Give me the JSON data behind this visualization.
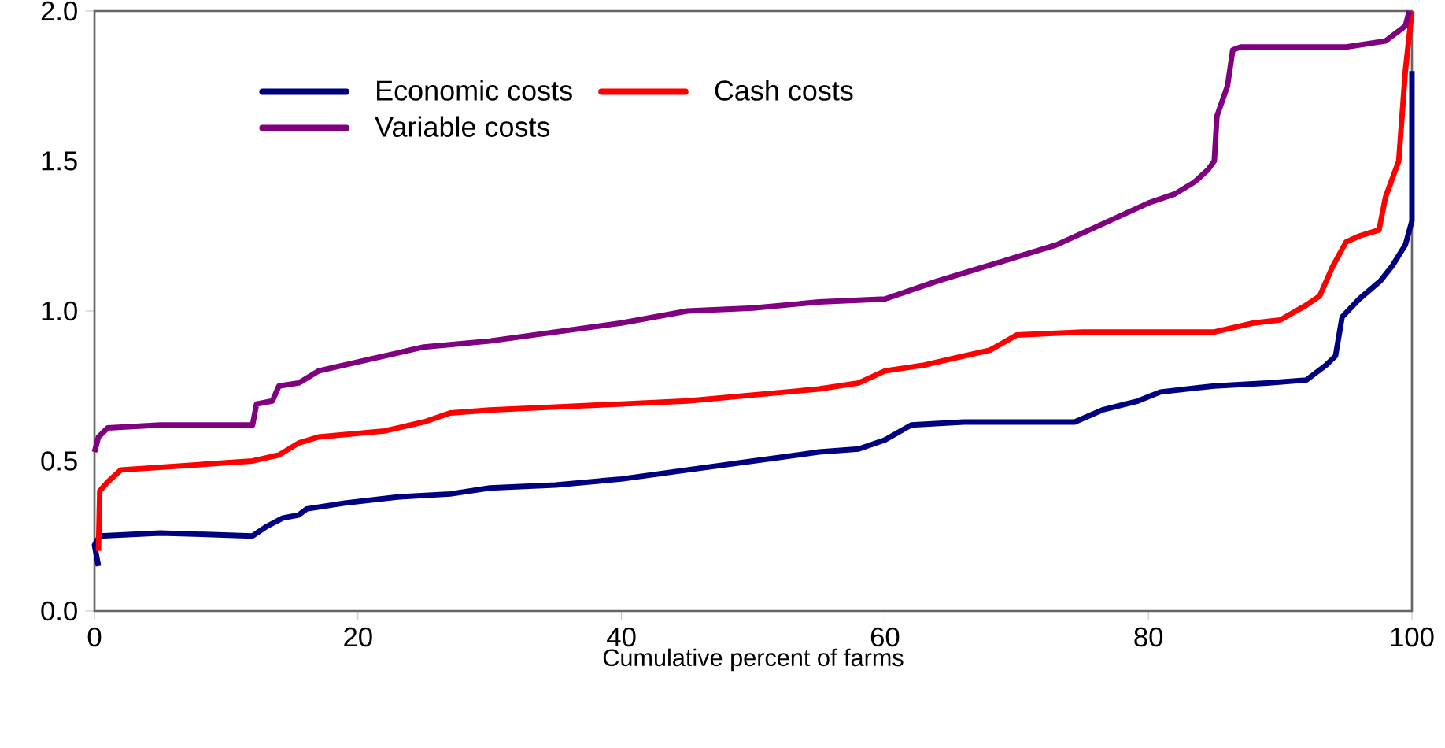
{
  "chart_data": {
    "type": "line",
    "xlabel": "Cumulative percent of farms",
    "xlim": [
      0,
      100
    ],
    "xticks": [
      0,
      20,
      40,
      60,
      80,
      100
    ],
    "ylim": [
      0,
      2.0
    ],
    "yticks": [
      {
        "value": 0,
        "label": "0.0"
      },
      {
        "value": 0.5,
        "label": "0.5"
      },
      {
        "value": 1.0,
        "label": "1.0"
      },
      {
        "value": 1.5,
        "label": "1.5"
      },
      {
        "value": 2.0,
        "label": "2.0"
      }
    ],
    "grid": false,
    "legend": "top left",
    "marker": "none",
    "line_style": "solid",
    "series": [
      {
        "name": "Economic costs",
        "color": "#000080",
        "x": [
          0.3,
          0,
          0.4,
          5,
          12,
          13,
          14.3,
          15.5,
          16.1,
          19,
          23,
          27,
          30,
          35,
          40,
          45,
          50,
          55,
          58,
          60,
          62,
          66,
          70,
          74.4,
          76.5,
          79.2,
          80.9,
          85,
          89,
          92,
          93.5,
          94.2,
          94.7,
          96,
          97.6,
          98.5,
          99.5,
          100,
          100
        ],
        "values": [
          0.15,
          0.22,
          0.25,
          0.26,
          0.25,
          0.28,
          0.31,
          0.32,
          0.34,
          0.36,
          0.38,
          0.39,
          0.41,
          0.42,
          0.44,
          0.47,
          0.5,
          0.53,
          0.54,
          0.57,
          0.62,
          0.63,
          0.63,
          0.63,
          0.67,
          0.7,
          0.73,
          0.75,
          0.76,
          0.77,
          0.82,
          0.85,
          0.98,
          1.04,
          1.1,
          1.15,
          1.22,
          1.3,
          1.8
        ]
      },
      {
        "name": "Cash costs",
        "color": "#ff0000",
        "x": [
          0.3,
          0.4,
          1,
          2,
          12,
          14,
          15.5,
          17,
          22,
          25,
          27,
          30,
          35,
          40,
          45,
          50,
          55,
          58,
          60,
          63,
          65,
          68,
          70,
          75,
          85,
          88,
          90,
          92,
          93,
          94,
          95,
          96,
          97.5,
          98,
          99,
          99.5,
          100
        ],
        "values": [
          0.2,
          0.4,
          0.43,
          0.47,
          0.5,
          0.52,
          0.56,
          0.58,
          0.6,
          0.63,
          0.66,
          0.67,
          0.68,
          0.69,
          0.7,
          0.72,
          0.74,
          0.76,
          0.8,
          0.82,
          0.84,
          0.87,
          0.92,
          0.93,
          0.93,
          0.96,
          0.97,
          1.02,
          1.05,
          1.15,
          1.23,
          1.25,
          1.27,
          1.38,
          1.5,
          1.8,
          2.0
        ]
      },
      {
        "name": "Variable costs",
        "color": "#800080",
        "x": [
          0,
          0.3,
          1,
          5,
          12,
          12.3,
          13.5,
          14,
          15.5,
          17,
          21,
          25,
          30,
          35,
          40,
          45,
          50,
          55,
          60,
          64,
          67,
          70,
          73,
          76,
          80,
          82,
          83.5,
          84.5,
          85,
          85.2,
          86,
          86.4,
          87,
          95,
          98,
          99.5,
          99.8
        ],
        "values": [
          0.53,
          0.58,
          0.61,
          0.62,
          0.62,
          0.69,
          0.7,
          0.75,
          0.76,
          0.8,
          0.84,
          0.88,
          0.9,
          0.93,
          0.96,
          1.0,
          1.01,
          1.03,
          1.04,
          1.1,
          1.14,
          1.18,
          1.22,
          1.28,
          1.36,
          1.39,
          1.43,
          1.47,
          1.5,
          1.65,
          1.75,
          1.87,
          1.88,
          1.88,
          1.9,
          1.95,
          2.0
        ]
      }
    ]
  }
}
